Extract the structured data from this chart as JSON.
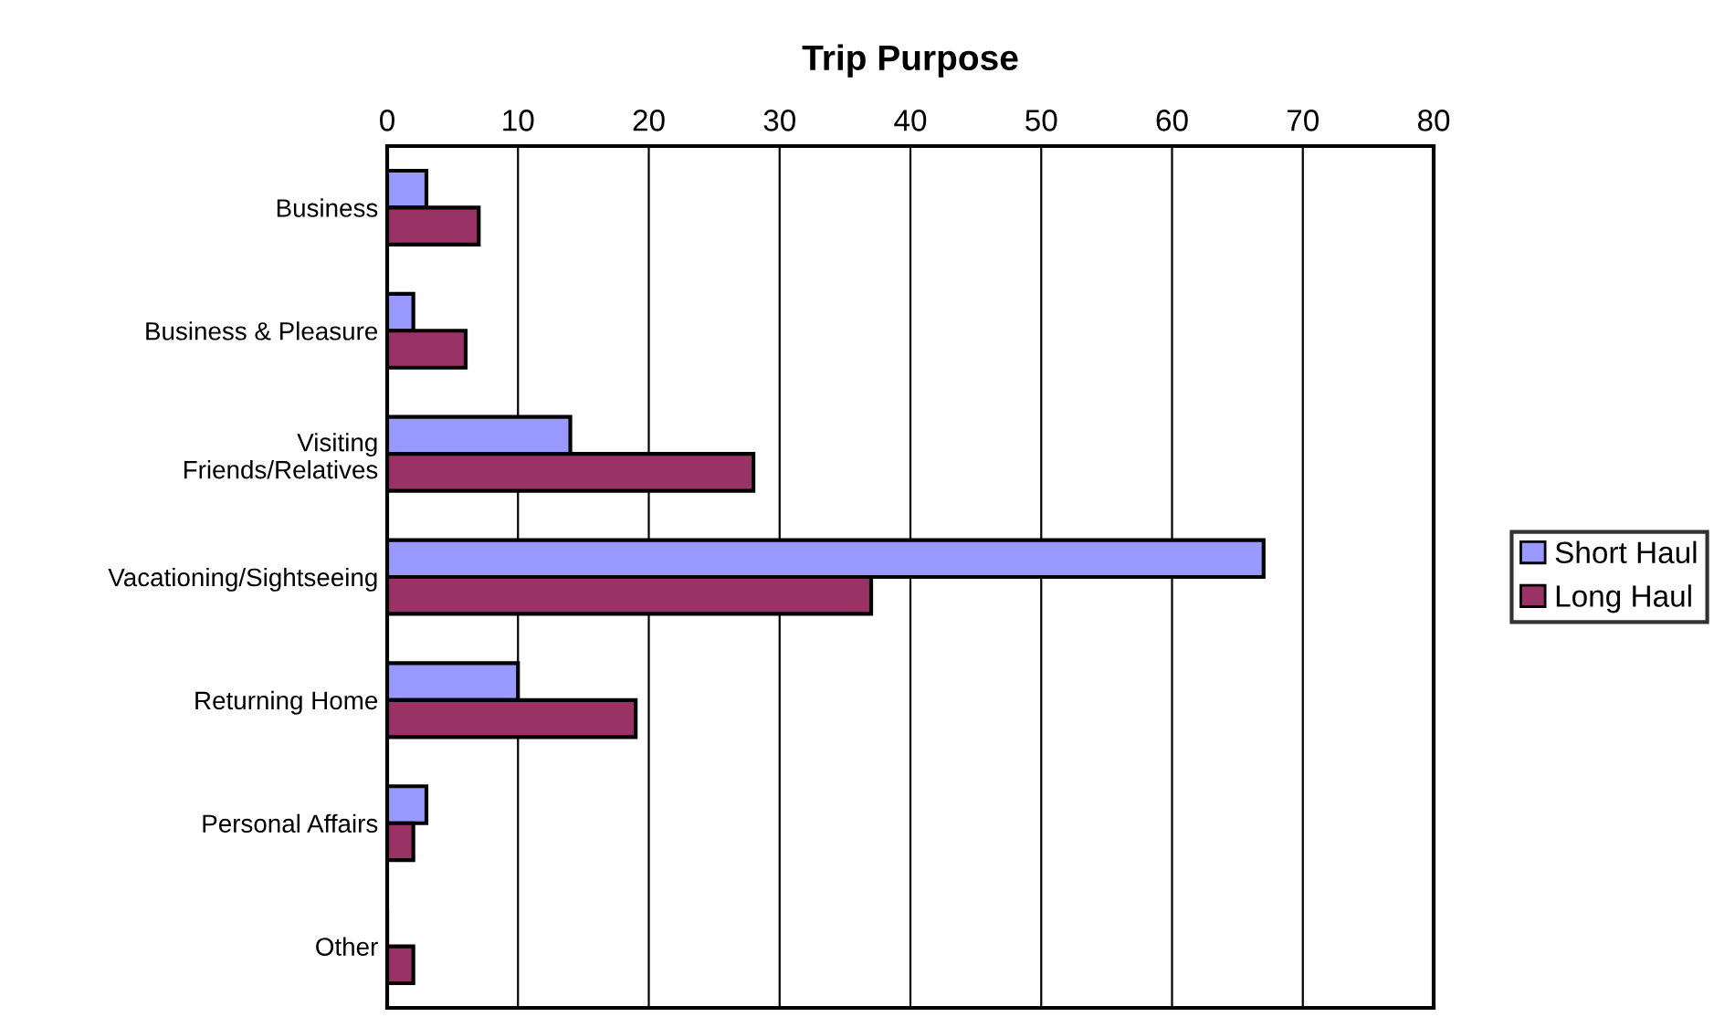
{
  "chart_data": {
    "type": "bar",
    "orientation": "horizontal",
    "title": "Trip Purpose",
    "categories": [
      "Business",
      "Business & Pleasure",
      "Visiting\nFriends/Relatives",
      "Vacationing/Sightseeing",
      "Returning Home",
      "Personal Affairs",
      "Other"
    ],
    "series": [
      {
        "name": "Short Haul",
        "color": "#9999ff",
        "values": [
          3,
          2,
          14,
          67,
          10,
          3,
          0
        ]
      },
      {
        "name": "Long Haul",
        "color": "#993366",
        "values": [
          7,
          6,
          28,
          37,
          19,
          2,
          2
        ]
      }
    ],
    "xlim": [
      0,
      80
    ],
    "xticks": [
      0,
      10,
      20,
      30,
      40,
      50,
      60,
      70,
      80
    ],
    "grid": "x",
    "legend": "right"
  }
}
